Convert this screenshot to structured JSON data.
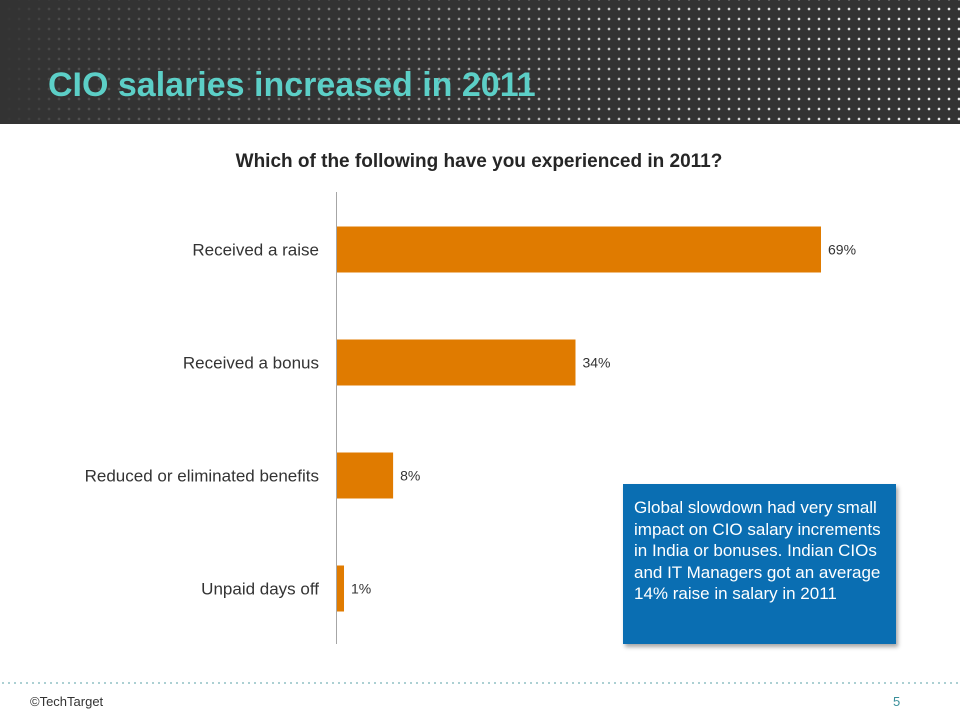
{
  "slide": {
    "title": "CIO salaries increased in 2011",
    "callout_text": "Global slowdown had very small impact on CIO salary increments in India or bonuses. Indian CIOs and IT Managers got an average 14% raise in salary in 2011",
    "footer": {
      "copyright": "©TechTarget",
      "page_number": "5"
    },
    "colors": {
      "header_bg": "#333333",
      "title": "#5ccfc7",
      "bar": "#e07b00",
      "callout_bg": "#0a6eb2"
    }
  },
  "chart_data": {
    "type": "bar",
    "orientation": "horizontal",
    "title": "Which of the following have you experienced in 2011?",
    "categories": [
      "Received a raise",
      "Received a bonus",
      "Reduced or eliminated benefits",
      "Unpaid days off"
    ],
    "values": [
      69,
      34,
      8,
      1
    ],
    "value_labels": [
      "69%",
      "34%",
      "8%",
      "1%"
    ],
    "unit": "%",
    "xlabel": "",
    "ylabel": "",
    "xlim": [
      0,
      88
    ],
    "grid": false,
    "legend": "none"
  }
}
